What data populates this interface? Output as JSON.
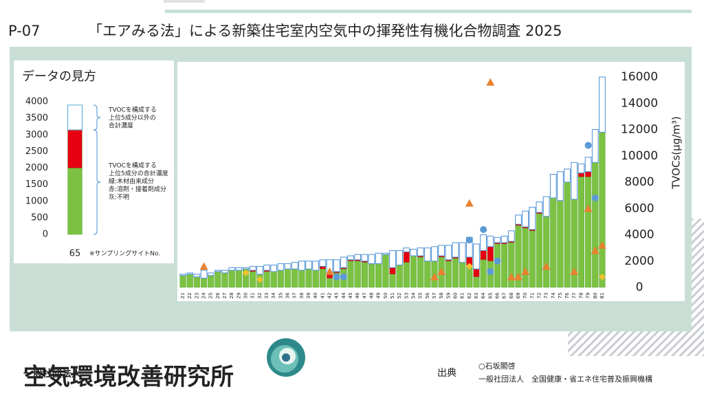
{
  "header": {
    "slide_id": "P-07",
    "title": "「エアみる法」による新築住宅室内空気中の揮発性有機化合物調査 2025"
  },
  "chart_data": [
    {
      "type": "bar",
      "stacked": true,
      "y_axis_side": "right",
      "y_label": "TVOCs(μg/m³)",
      "categories": [
        "21",
        "22",
        "23",
        "24",
        "25",
        "26",
        "27",
        "28",
        "29",
        "30",
        "31",
        "32",
        "33",
        "34",
        "35",
        "36",
        "37",
        "38",
        "39",
        "40",
        "41",
        "42",
        "43",
        "44",
        "45",
        "46",
        "47",
        "48",
        "49",
        "50",
        "51",
        "52",
        "53",
        "54",
        "55",
        "56",
        "57",
        "58",
        "59",
        "60",
        "61",
        "62",
        "63",
        "64",
        "65",
        "66",
        "67",
        "68",
        "69",
        "70",
        "71",
        "72",
        "73",
        "74",
        "75",
        "76",
        "77",
        "78",
        "79",
        "80",
        "81"
      ],
      "series": [
        {
          "color": "#7cc242",
          "values": [
            900,
            1000,
            800,
            700,
            900,
            1200,
            1100,
            1300,
            1300,
            1400,
            1200,
            1000,
            1200,
            1200,
            1300,
            1400,
            1400,
            1300,
            1400,
            1300,
            1400,
            700,
            1100,
            1400,
            2000,
            2000,
            1900,
            1800,
            1800,
            2500,
            1000,
            1700,
            1900,
            2400,
            2300,
            2000,
            2000,
            2300,
            2000,
            2200,
            1900,
            1700,
            800,
            2100,
            2000,
            3300,
            3300,
            3400,
            4700,
            4500,
            4300,
            5600,
            5400,
            6800,
            6600,
            8000,
            6700,
            8400,
            8400,
            9500,
            11800
          ]
        },
        {
          "color": "#e60012",
          "values": [
            0,
            0,
            0,
            0,
            0,
            0,
            0,
            0,
            0,
            0,
            100,
            0,
            100,
            0,
            0,
            0,
            0,
            0,
            0,
            0,
            200,
            300,
            100,
            100,
            100,
            100,
            100,
            0,
            0,
            0,
            500,
            0,
            800,
            0,
            100,
            0,
            0,
            100,
            100,
            100,
            0,
            600,
            600,
            700,
            1100,
            100,
            100,
            100,
            100,
            100,
            100,
            100,
            0,
            0,
            0,
            0,
            0,
            300,
            400,
            0,
            0
          ]
        },
        {
          "color": "#ffffff",
          "stroke": "#4a8fd6",
          "values": [
            100,
            100,
            200,
            600,
            200,
            100,
            200,
            200,
            200,
            100,
            300,
            600,
            400,
            500,
            500,
            400,
            500,
            700,
            600,
            700,
            500,
            1100,
            900,
            800,
            300,
            400,
            500,
            700,
            800,
            100,
            1300,
            1100,
            300,
            500,
            600,
            1000,
            1100,
            800,
            1100,
            1100,
            1500,
            1500,
            1900,
            1200,
            800,
            400,
            500,
            800,
            700,
            1200,
            1700,
            800,
            1500,
            1800,
            2200,
            1000,
            2800,
            700,
            1100,
            2500,
            4200
          ]
        }
      ],
      "markers": [
        {
          "shape": "triangle",
          "color": "#e8812f",
          "values": [
            null,
            null,
            null,
            1600,
            null,
            null,
            null,
            null,
            null,
            null,
            null,
            null,
            null,
            null,
            null,
            null,
            null,
            null,
            null,
            null,
            null,
            1200,
            null,
            null,
            null,
            null,
            null,
            null,
            null,
            null,
            null,
            null,
            null,
            null,
            null,
            null,
            800,
            1200,
            null,
            null,
            null,
            6400,
            null,
            null,
            15600,
            null,
            null,
            800,
            800,
            1200,
            null,
            null,
            1600,
            null,
            null,
            null,
            1200,
            null,
            6000,
            2800,
            3200
          ]
        },
        {
          "shape": "circle",
          "color": "#5b9bd5",
          "values": [
            null,
            null,
            null,
            null,
            null,
            null,
            null,
            null,
            null,
            null,
            null,
            null,
            null,
            null,
            null,
            null,
            null,
            null,
            null,
            null,
            null,
            null,
            800,
            800,
            null,
            null,
            null,
            null,
            null,
            null,
            null,
            null,
            null,
            null,
            null,
            null,
            null,
            null,
            null,
            null,
            null,
            3600,
            null,
            4400,
            1200,
            2000,
            null,
            null,
            null,
            null,
            null,
            null,
            null,
            null,
            null,
            null,
            null,
            null,
            10800,
            6800,
            null
          ]
        },
        {
          "shape": "diamond",
          "color": "#f2c12e",
          "values": [
            null,
            null,
            null,
            null,
            null,
            null,
            null,
            null,
            null,
            1100,
            null,
            600,
            null,
            null,
            null,
            null,
            null,
            null,
            null,
            null,
            null,
            null,
            null,
            null,
            null,
            null,
            null,
            null,
            null,
            null,
            null,
            null,
            null,
            null,
            null,
            null,
            null,
            null,
            null,
            null,
            null,
            1600,
            null,
            null,
            null,
            null,
            null,
            null,
            null,
            null,
            null,
            null,
            null,
            null,
            null,
            null,
            null,
            null,
            null,
            null,
            800
          ]
        }
      ],
      "ylim": [
        0,
        16000
      ],
      "yticks": [
        0,
        2000,
        4000,
        6000,
        8000,
        10000,
        12000,
        14000,
        16000
      ]
    },
    {
      "type": "bar",
      "stacked": true,
      "y_axis_side": "left",
      "title": "データの見方",
      "categories": [
        "65"
      ],
      "category_note": "※サンプリングサイトNo.",
      "series": [
        {
          "color": "#7cc242",
          "values": [
            2000
          ]
        },
        {
          "color": "#e60012",
          "values": [
            1150
          ]
        },
        {
          "color": "#ffffff",
          "stroke": "#4aa8d8",
          "values": [
            750
          ]
        }
      ],
      "annotations": [
        {
          "lines": [
            "TVOCを構成する",
            "上位5成分以外の",
            "合計濃度"
          ]
        },
        {
          "lines": [
            "TVOCを構成する",
            "上位5成分の合計濃度",
            "緑:木材由来成分",
            "赤:溶剤・接着剤成分",
            "灰:不明"
          ]
        }
      ],
      "ylim": [
        0,
        4000
      ],
      "yticks": [
        0,
        500,
        1000,
        1500,
        2000,
        2500,
        3000,
        3500,
        4000
      ]
    }
  ],
  "footer": {
    "org_prefix": "一般社団法人",
    "org_name": "空気環境改善研究所",
    "source_label": "出典",
    "source_lines": [
      "○石坂閣啓",
      "一般社団法人　全国健康・省エネ住宅普及振興機構"
    ]
  }
}
